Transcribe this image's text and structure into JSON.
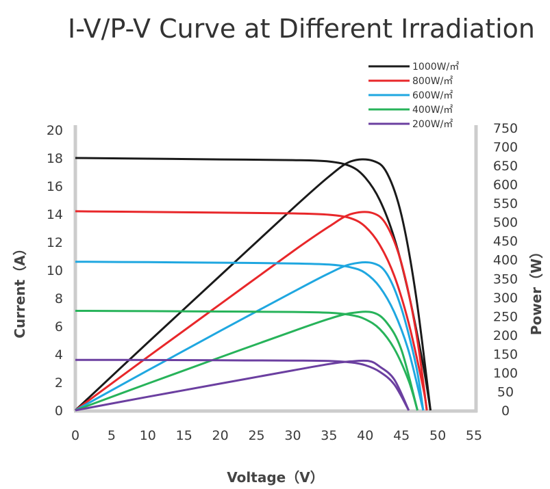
{
  "chart_data": {
    "type": "line",
    "title": "I-V/P-V Curve at Different Irradiation",
    "xlabel": "Voltage（V）",
    "ylabel": "Current（A）",
    "y2label": "Power（W）",
    "xlim": [
      0,
      55
    ],
    "ylim": [
      0,
      20
    ],
    "y2lim": [
      0,
      750
    ],
    "xticks": [
      "0",
      "5",
      "10",
      "15",
      "20",
      "25",
      "30",
      "35",
      "40",
      "45",
      "50",
      "55"
    ],
    "yticks": [
      "0",
      "2",
      "4",
      "6",
      "8",
      "10",
      "12",
      "14",
      "16",
      "18",
      "20"
    ],
    "y2ticks": [
      "0",
      "50",
      "100",
      "150",
      "200",
      "250",
      "300",
      "350",
      "400",
      "450",
      "500",
      "550",
      "600",
      "650",
      "700",
      "750"
    ],
    "grid": false,
    "legend_position": "top-right",
    "series": [
      {
        "name": "1000W/㎡",
        "color": "#1a1a1a",
        "isc": 18.0,
        "voc": 49.0,
        "vmp": 41.0,
        "pmax": 665,
        "iv": [
          [
            0,
            18.0
          ],
          [
            10,
            17.95
          ],
          [
            20,
            17.9
          ],
          [
            30,
            17.85
          ],
          [
            35,
            17.75
          ],
          [
            38,
            17.4
          ],
          [
            40,
            16.6
          ],
          [
            42,
            15.0
          ],
          [
            44,
            12.3
          ],
          [
            46,
            8.3
          ],
          [
            48,
            3.2
          ],
          [
            49,
            0
          ]
        ],
        "pv": [
          [
            0,
            0
          ],
          [
            10,
            180
          ],
          [
            20,
            358
          ],
          [
            30,
            536
          ],
          [
            35,
            621
          ],
          [
            38,
            661
          ],
          [
            41,
            663
          ],
          [
            43,
            630
          ],
          [
            45,
            518
          ],
          [
            47,
            305
          ],
          [
            49,
            0
          ]
        ]
      },
      {
        "name": "800W/㎡",
        "color": "#e8272a",
        "isc": 14.2,
        "voc": 48.5,
        "vmp": 41.0,
        "pmax": 525,
        "iv": [
          [
            0,
            14.2
          ],
          [
            10,
            14.15
          ],
          [
            20,
            14.1
          ],
          [
            30,
            14.05
          ],
          [
            35,
            13.95
          ],
          [
            38,
            13.7
          ],
          [
            40,
            13.1
          ],
          [
            42,
            11.8
          ],
          [
            44,
            9.6
          ],
          [
            46,
            6.2
          ],
          [
            48,
            1.6
          ],
          [
            48.5,
            0
          ]
        ],
        "pv": [
          [
            0,
            0
          ],
          [
            10,
            142
          ],
          [
            20,
            282
          ],
          [
            30,
            422
          ],
          [
            35,
            488
          ],
          [
            38,
            521
          ],
          [
            41,
            524
          ],
          [
            43,
            490
          ],
          [
            45,
            390
          ],
          [
            47,
            210
          ],
          [
            48.5,
            0
          ]
        ]
      },
      {
        "name": "600W/㎡",
        "color": "#1fa7e0",
        "isc": 10.6,
        "voc": 48.0,
        "vmp": 41.0,
        "pmax": 392,
        "iv": [
          [
            0,
            10.6
          ],
          [
            10,
            10.57
          ],
          [
            20,
            10.53
          ],
          [
            30,
            10.48
          ],
          [
            35,
            10.4
          ],
          [
            38,
            10.2
          ],
          [
            40,
            9.8
          ],
          [
            42,
            8.8
          ],
          [
            44,
            7.0
          ],
          [
            46,
            4.2
          ],
          [
            48,
            0
          ]
        ],
        "pv": [
          [
            0,
            0
          ],
          [
            10,
            106
          ],
          [
            20,
            211
          ],
          [
            30,
            314
          ],
          [
            35,
            364
          ],
          [
            38,
            388
          ],
          [
            41,
            391
          ],
          [
            43,
            362
          ],
          [
            45,
            270
          ],
          [
            47,
            120
          ],
          [
            48,
            0
          ]
        ]
      },
      {
        "name": "400W/㎡",
        "color": "#27b35a",
        "isc": 7.1,
        "voc": 47.2,
        "vmp": 41.0,
        "pmax": 262,
        "iv": [
          [
            0,
            7.1
          ],
          [
            10,
            7.08
          ],
          [
            20,
            7.05
          ],
          [
            30,
            7.02
          ],
          [
            35,
            6.96
          ],
          [
            38,
            6.8
          ],
          [
            40,
            6.5
          ],
          [
            42,
            5.8
          ],
          [
            44,
            4.4
          ],
          [
            46,
            2.1
          ],
          [
            47.2,
            0
          ]
        ],
        "pv": [
          [
            0,
            0
          ],
          [
            10,
            71
          ],
          [
            20,
            141
          ],
          [
            30,
            210
          ],
          [
            35,
            243
          ],
          [
            38,
            258
          ],
          [
            41,
            260
          ],
          [
            43,
            232
          ],
          [
            45,
            160
          ],
          [
            47.2,
            0
          ]
        ]
      },
      {
        "name": "200W/㎡",
        "color": "#6b3fa0",
        "isc": 3.6,
        "voc": 46.0,
        "vmp": 40.5,
        "pmax": 132,
        "iv": [
          [
            0,
            3.6
          ],
          [
            10,
            3.59
          ],
          [
            20,
            3.57
          ],
          [
            30,
            3.55
          ],
          [
            35,
            3.52
          ],
          [
            38,
            3.42
          ],
          [
            40,
            3.22
          ],
          [
            42,
            2.75
          ],
          [
            44,
            1.85
          ],
          [
            46,
            0
          ]
        ],
        "pv": [
          [
            0,
            0
          ],
          [
            10,
            36
          ],
          [
            20,
            71
          ],
          [
            30,
            106
          ],
          [
            35,
            123
          ],
          [
            38,
            130
          ],
          [
            40.5,
            131
          ],
          [
            42,
            116
          ],
          [
            44,
            82
          ],
          [
            46,
            0
          ]
        ]
      }
    ]
  }
}
